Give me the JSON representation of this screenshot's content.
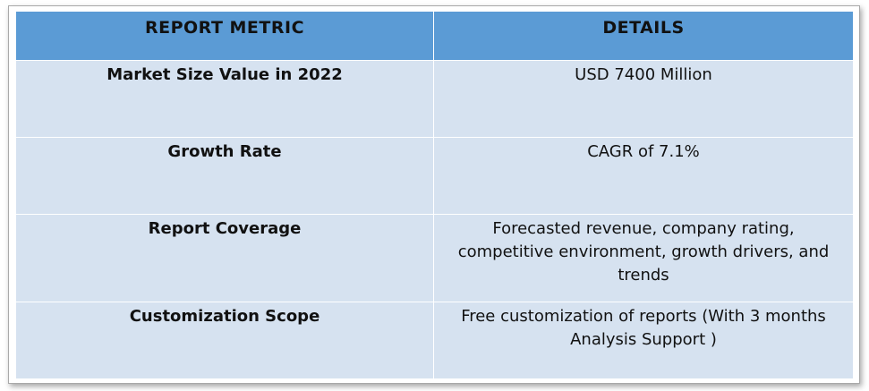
{
  "table": {
    "headers": [
      "REPORT METRIC",
      "DETAILS"
    ],
    "rows": [
      {
        "metric": "Market Size Value in 2022",
        "details": "USD 7400 Million"
      },
      {
        "metric": "Growth Rate",
        "details": "CAGR of 7.1%"
      },
      {
        "metric": "Report Coverage",
        "details": "Forecasted revenue, company rating, competitive environment, growth drivers, and trends"
      },
      {
        "metric": "Customization Scope",
        "details": "Free customization of reports (With 3 months Analysis Support )"
      }
    ]
  },
  "colors": {
    "header_bg": "#5b9bd5",
    "row_bg": "#d6e2f0",
    "border": "#ffffff"
  }
}
